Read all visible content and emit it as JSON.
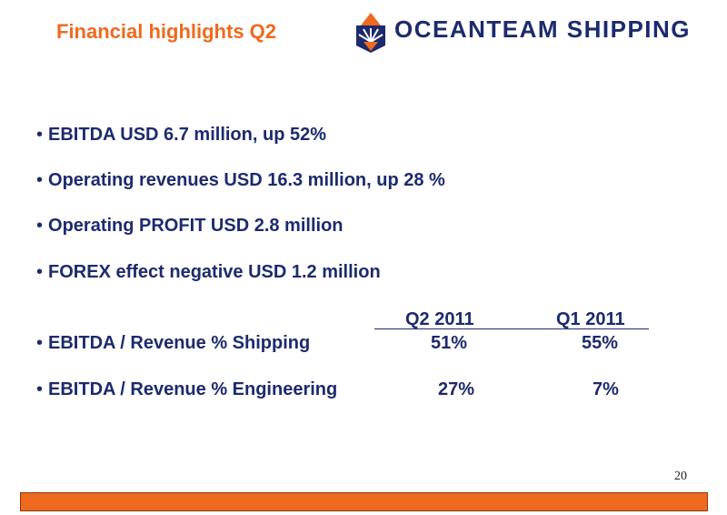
{
  "slide": {
    "title": "Financial highlights Q2",
    "page_number": "20"
  },
  "logo": {
    "text": "OCEANTEAM SHIPPING",
    "icon": "compass-rose-icon",
    "color": "#1d2a6e"
  },
  "bullets": [
    "EBITDA USD 6.7 million, up 52%",
    "Operating revenues USD 16.3 million, up 28 %",
    "Operating PROFIT USD 2.8 million",
    "FOREX effect negative USD 1.2 million"
  ],
  "table": {
    "columns": [
      "Q2 2011",
      "Q1 2011"
    ],
    "rows": [
      {
        "label": "EBITDA / Revenue % Shipping",
        "values": [
          "51%",
          "55%"
        ]
      },
      {
        "label": "EBITDA / Revenue % Engineering",
        "values": [
          "27%",
          "7%"
        ]
      }
    ]
  },
  "colors": {
    "accent": "#ee6a1e",
    "text": "#1d2a6e"
  }
}
